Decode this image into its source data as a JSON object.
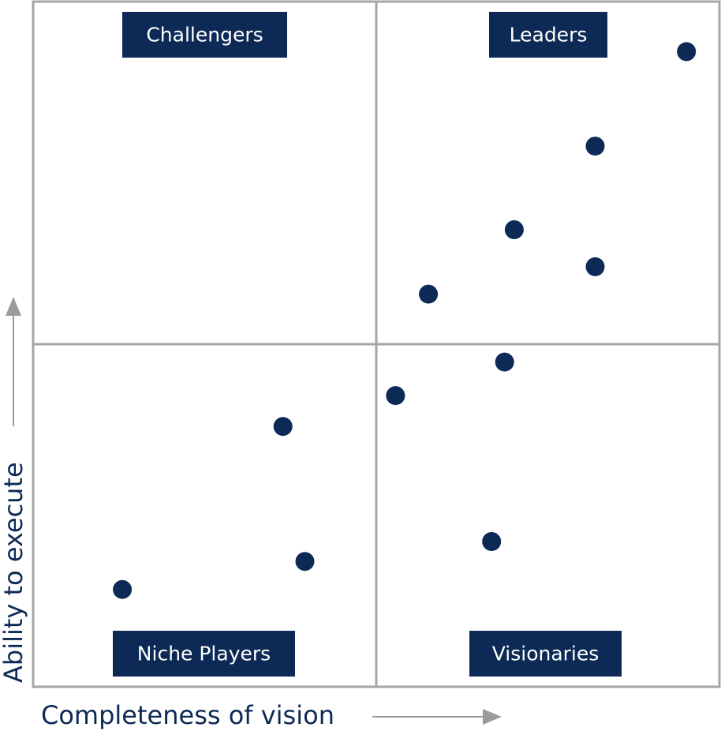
{
  "chart_data": {
    "type": "scatter",
    "title": "",
    "xlabel": "Completeness of vision",
    "ylabel": "Ability to execute",
    "xlim": [
      0,
      100
    ],
    "ylim": [
      0,
      100
    ],
    "grid": true,
    "quadrant_labels": {
      "top_left": "Challengers",
      "top_right": "Leaders",
      "bottom_left": "Niche Players",
      "bottom_right": "Visionaries"
    },
    "points": [
      {
        "x": 95.2,
        "y": 92.7
      },
      {
        "x": 81.9,
        "y": 78.9
      },
      {
        "x": 70.1,
        "y": 66.7
      },
      {
        "x": 81.9,
        "y": 61.3
      },
      {
        "x": 57.6,
        "y": 57.3
      },
      {
        "x": 68.7,
        "y": 47.4
      },
      {
        "x": 52.8,
        "y": 42.5
      },
      {
        "x": 36.4,
        "y": 38.0
      },
      {
        "x": 66.8,
        "y": 21.2
      },
      {
        "x": 39.6,
        "y": 18.3
      },
      {
        "x": 13.0,
        "y": 14.2
      }
    ],
    "colors": {
      "point": "#0c2a55",
      "label_bg": "#0c2a55",
      "label_text": "#ffffff",
      "grid": "#a6a6a6",
      "arrow": "#9b9b9b",
      "axis_title": "#0c2a55"
    }
  }
}
